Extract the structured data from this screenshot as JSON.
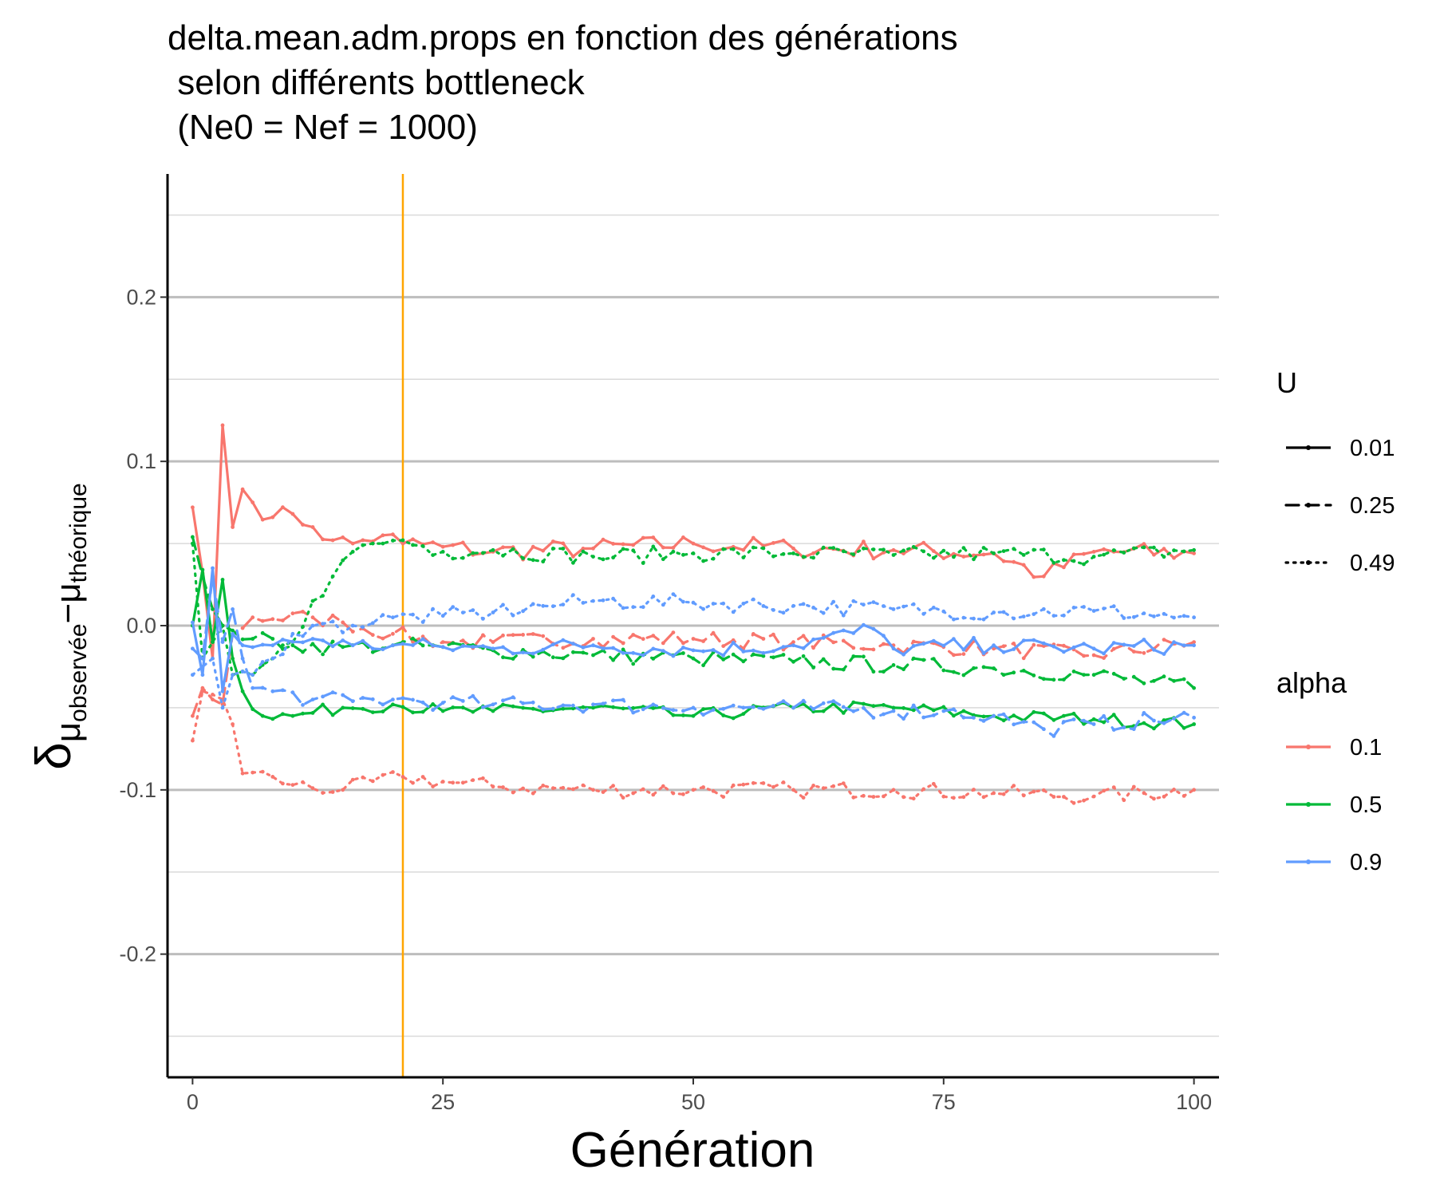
{
  "chart_data": {
    "type": "line",
    "title_lines": [
      "delta.mean.adm.props en fonction des générations",
      " selon différents bottleneck",
      " (Ne0 = Nef = 1000)"
    ],
    "xlabel": "Génération",
    "ylabel": {
      "symbol": "δ",
      "sub_mu1": "μ",
      "sub_word1": "observée",
      "minus": "−",
      "sub_mu2": "μ",
      "sub_word2": "théorique"
    },
    "xlim": [
      -2.5,
      102.5
    ],
    "ylim": [
      -0.275,
      0.275
    ],
    "x_ticks": [
      0,
      25,
      50,
      75,
      100
    ],
    "x_tick_labels": [
      "0",
      "25",
      "50",
      "75",
      "100"
    ],
    "y_ticks": [
      -0.2,
      -0.1,
      0.0,
      0.1,
      0.2
    ],
    "y_tick_labels": [
      "-0.2",
      "-0.1",
      "0.0",
      "0.1",
      "0.2"
    ],
    "y_minor_ticks": [
      -0.25,
      -0.15,
      -0.05,
      0.05,
      0.15,
      0.25
    ],
    "grid": "horizontal",
    "vline": {
      "x": 21,
      "color": "#FFA500"
    },
    "legend_position": "right",
    "legend": {
      "U": {
        "title": "U",
        "labels": [
          "0.01",
          "0.25",
          "0.49"
        ],
        "dash": [
          "solid",
          "dashed",
          "dotted"
        ]
      },
      "alpha": {
        "title": "alpha",
        "labels": [
          "0.1",
          "0.5",
          "0.9"
        ],
        "colors": [
          "#F8766D",
          "#00BA38",
          "#619CFF"
        ]
      }
    },
    "series": [
      {
        "alpha": "0.1",
        "U": "0.01",
        "color": "#F8766D",
        "dash": "solid",
        "keypoints": [
          [
            0,
            0.072
          ],
          [
            1,
            0.032
          ],
          [
            2,
            -0.02
          ],
          [
            3,
            0.122
          ],
          [
            4,
            0.06
          ],
          [
            5,
            0.083
          ],
          [
            6,
            0.075
          ],
          [
            8,
            0.066
          ],
          [
            10,
            0.068
          ],
          [
            12,
            0.06
          ],
          [
            14,
            0.052
          ],
          [
            16,
            0.05
          ],
          [
            19,
            0.055
          ],
          [
            21,
            0.05
          ],
          [
            25,
            0.048
          ],
          [
            30,
            0.045
          ],
          [
            40,
            0.047
          ],
          [
            50,
            0.05
          ],
          [
            60,
            0.047
          ],
          [
            70,
            0.046
          ],
          [
            80,
            0.044
          ],
          [
            85,
            0.03
          ],
          [
            90,
            0.045
          ],
          [
            100,
            0.044
          ]
        ],
        "noise": 0.006
      },
      {
        "alpha": "0.1",
        "U": "0.25",
        "color": "#F8766D",
        "dash": "dashed",
        "keypoints": [
          [
            0,
            -0.055
          ],
          [
            1,
            -0.038
          ],
          [
            2,
            -0.045
          ],
          [
            3,
            -0.048
          ],
          [
            4,
            -0.005
          ],
          [
            6,
            0.005
          ],
          [
            8,
            0.004
          ],
          [
            12,
            0.005
          ],
          [
            15,
            0.002
          ],
          [
            20,
            -0.005
          ],
          [
            25,
            -0.01
          ],
          [
            30,
            -0.01
          ],
          [
            40,
            -0.008
          ],
          [
            50,
            -0.008
          ],
          [
            60,
            -0.01
          ],
          [
            70,
            -0.012
          ],
          [
            80,
            -0.014
          ],
          [
            90,
            -0.018
          ],
          [
            100,
            -0.01
          ]
        ],
        "noise": 0.005
      },
      {
        "alpha": "0.1",
        "U": "0.49",
        "color": "#F8766D",
        "dash": "dotted",
        "keypoints": [
          [
            0,
            -0.07
          ],
          [
            1,
            -0.04
          ],
          [
            2,
            -0.042
          ],
          [
            3,
            -0.045
          ],
          [
            4,
            -0.06
          ],
          [
            5,
            -0.09
          ],
          [
            8,
            -0.092
          ],
          [
            10,
            -0.097
          ],
          [
            15,
            -0.1
          ],
          [
            21,
            -0.092
          ],
          [
            25,
            -0.095
          ],
          [
            30,
            -0.098
          ],
          [
            40,
            -0.1
          ],
          [
            50,
            -0.1
          ],
          [
            60,
            -0.1
          ],
          [
            70,
            -0.1
          ],
          [
            80,
            -0.102
          ],
          [
            90,
            -0.104
          ],
          [
            100,
            -0.1
          ]
        ],
        "noise": 0.005
      },
      {
        "alpha": "0.5",
        "U": "0.01",
        "color": "#00BA38",
        "dash": "solid",
        "keypoints": [
          [
            0,
            0.0
          ],
          [
            1,
            0.034
          ],
          [
            2,
            -0.01
          ],
          [
            3,
            0.028
          ],
          [
            4,
            -0.02
          ],
          [
            5,
            -0.04
          ],
          [
            7,
            -0.055
          ],
          [
            10,
            -0.055
          ],
          [
            15,
            -0.05
          ],
          [
            20,
            -0.048
          ],
          [
            25,
            -0.052
          ],
          [
            30,
            -0.052
          ],
          [
            40,
            -0.05
          ],
          [
            50,
            -0.055
          ],
          [
            60,
            -0.05
          ],
          [
            70,
            -0.05
          ],
          [
            80,
            -0.055
          ],
          [
            90,
            -0.057
          ],
          [
            100,
            -0.06
          ]
        ],
        "noise": 0.004
      },
      {
        "alpha": "0.5",
        "U": "0.25",
        "color": "#00BA38",
        "dash": "dashed",
        "keypoints": [
          [
            0,
            0.054
          ],
          [
            1,
            0.03
          ],
          [
            2,
            0.01
          ],
          [
            3,
            0.0
          ],
          [
            4,
            -0.003
          ],
          [
            6,
            -0.008
          ],
          [
            10,
            -0.012
          ],
          [
            15,
            -0.013
          ],
          [
            20,
            -0.012
          ],
          [
            25,
            -0.013
          ],
          [
            30,
            -0.015
          ],
          [
            40,
            -0.018
          ],
          [
            50,
            -0.02
          ],
          [
            60,
            -0.022
          ],
          [
            70,
            -0.024
          ],
          [
            80,
            -0.026
          ],
          [
            90,
            -0.03
          ],
          [
            100,
            -0.038
          ]
        ],
        "noise": 0.005
      },
      {
        "alpha": "0.5",
        "U": "0.49",
        "color": "#00BA38",
        "dash": "dotted",
        "keypoints": [
          [
            0,
            0.05
          ],
          [
            1,
            -0.02
          ],
          [
            2,
            -0.01
          ],
          [
            3,
            0.0
          ],
          [
            4,
            -0.03
          ],
          [
            6,
            -0.03
          ],
          [
            8,
            -0.02
          ],
          [
            10,
            -0.01
          ],
          [
            12,
            0.015
          ],
          [
            14,
            0.03
          ],
          [
            16,
            0.045
          ],
          [
            18,
            0.05
          ],
          [
            21,
            0.052
          ],
          [
            25,
            0.045
          ],
          [
            30,
            0.046
          ],
          [
            40,
            0.042
          ],
          [
            50,
            0.044
          ],
          [
            60,
            0.044
          ],
          [
            70,
            0.043
          ],
          [
            80,
            0.044
          ],
          [
            90,
            0.042
          ],
          [
            100,
            0.046
          ]
        ],
        "noise": 0.005
      },
      {
        "alpha": "0.9",
        "U": "0.01",
        "color": "#619CFF",
        "dash": "solid",
        "keypoints": [
          [
            0,
            0.002
          ],
          [
            1,
            -0.03
          ],
          [
            2,
            0.035
          ],
          [
            3,
            -0.04
          ],
          [
            4,
            -0.005
          ],
          [
            5,
            -0.012
          ],
          [
            8,
            -0.012
          ],
          [
            12,
            -0.008
          ],
          [
            16,
            -0.012
          ],
          [
            20,
            -0.012
          ],
          [
            25,
            -0.013
          ],
          [
            30,
            -0.014
          ],
          [
            40,
            -0.012
          ],
          [
            50,
            -0.015
          ],
          [
            60,
            -0.012
          ],
          [
            68,
            -0.002
          ],
          [
            70,
            -0.014
          ],
          [
            80,
            -0.012
          ],
          [
            90,
            -0.014
          ],
          [
            100,
            -0.012
          ]
        ],
        "noise": 0.005
      },
      {
        "alpha": "0.9",
        "U": "0.25",
        "color": "#619CFF",
        "dash": "dashed",
        "keypoints": [
          [
            0,
            -0.014
          ],
          [
            1,
            -0.02
          ],
          [
            2,
            0.03
          ],
          [
            3,
            -0.01
          ],
          [
            4,
            0.01
          ],
          [
            5,
            -0.02
          ],
          [
            6,
            -0.038
          ],
          [
            8,
            -0.04
          ],
          [
            12,
            -0.045
          ],
          [
            16,
            -0.046
          ],
          [
            20,
            -0.045
          ],
          [
            25,
            -0.047
          ],
          [
            30,
            -0.048
          ],
          [
            40,
            -0.048
          ],
          [
            50,
            -0.05
          ],
          [
            60,
            -0.05
          ],
          [
            70,
            -0.052
          ],
          [
            75,
            -0.052
          ],
          [
            80,
            -0.055
          ],
          [
            85,
            -0.063
          ],
          [
            90,
            -0.06
          ],
          [
            100,
            -0.056
          ]
        ],
        "noise": 0.005
      },
      {
        "alpha": "0.9",
        "U": "0.49",
        "color": "#619CFF",
        "dash": "dotted",
        "keypoints": [
          [
            0,
            -0.03
          ],
          [
            1,
            -0.025
          ],
          [
            2,
            -0.02
          ],
          [
            3,
            -0.05
          ],
          [
            4,
            -0.03
          ],
          [
            6,
            -0.03
          ],
          [
            8,
            -0.02
          ],
          [
            10,
            -0.005
          ],
          [
            12,
            0.0
          ],
          [
            16,
            0.0
          ],
          [
            20,
            0.005
          ],
          [
            25,
            0.006
          ],
          [
            30,
            0.008
          ],
          [
            35,
            0.012
          ],
          [
            40,
            0.015
          ],
          [
            50,
            0.014
          ],
          [
            60,
            0.012
          ],
          [
            70,
            0.01
          ],
          [
            80,
            0.008
          ],
          [
            90,
            0.009
          ],
          [
            100,
            0.005
          ]
        ],
        "noise": 0.005
      }
    ]
  }
}
